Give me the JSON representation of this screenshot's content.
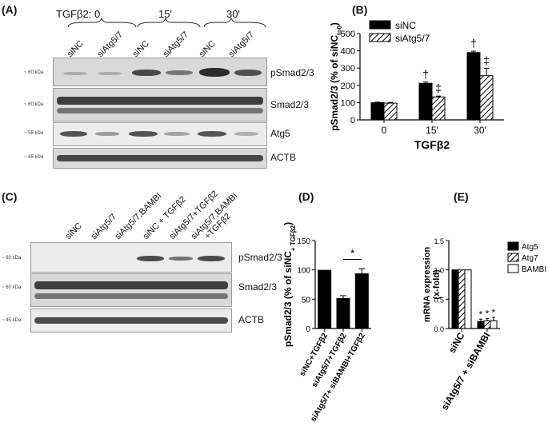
{
  "panels": {
    "A": {
      "letter": "(A)",
      "treatment_label": "TGFβ2:",
      "time_groups": [
        "0",
        "15'",
        "30'"
      ],
      "lanes": [
        "siNC",
        "siAtg5/7",
        "siNC",
        "siAtg5/7",
        "siNC",
        "siAtg5/7"
      ],
      "blots": [
        {
          "name": "pSmad2/3",
          "marker": "~ 60 kDa"
        },
        {
          "name": "Smad2/3",
          "marker": "~ 60 kDa"
        },
        {
          "name": "Atg5",
          "marker": "~ 55 kDa"
        },
        {
          "name": "ACTB",
          "marker": "~ 45 kDa"
        }
      ]
    },
    "B": {
      "letter": "(B)"
    },
    "C": {
      "letter": "(C)",
      "lanes": [
        "siNC",
        "siAtg5/7",
        "siAtg5/7,BAMBI",
        "siNC + TGFβ2",
        "siAtg5/7+TGFβ2",
        "siAtg5/7,BAMBI",
        "+TGFβ2"
      ],
      "blots": [
        {
          "name": "pSmad2/3",
          "marker": "~ 60 kDa"
        },
        {
          "name": "Smad2/3",
          "marker": "~ 60 kDa"
        },
        {
          "name": "ACTB",
          "marker": "~ 45 kDa"
        }
      ]
    },
    "D": {
      "letter": "(D)",
      "significance": "*"
    },
    "E": {
      "letter": "(E)",
      "significance": "*"
    }
  },
  "chart_data": [
    {
      "panel": "B",
      "type": "bar",
      "categories": [
        "0",
        "15'",
        "30'"
      ],
      "series": [
        {
          "name": "siNC",
          "values": [
            100,
            212,
            390
          ],
          "errors": [
            3,
            8,
            8
          ],
          "color": "#000000",
          "pattern": "solid"
        },
        {
          "name": "siAtg5/7",
          "values": [
            97,
            133,
            256
          ],
          "errors": [
            4,
            5,
            42
          ],
          "color": "#ffffff",
          "pattern": "hatch"
        }
      ],
      "markers": [
        {
          "category": "15'",
          "series": "siNC",
          "symbol": "†"
        },
        {
          "category": "15'",
          "series": "siAtg5/7",
          "symbol": "‡"
        },
        {
          "category": "30'",
          "series": "siNC",
          "symbol": "†"
        },
        {
          "category": "30'",
          "series": "siAtg5/7",
          "symbol": "‡"
        }
      ],
      "xlabel": "TGFβ2",
      "ylabel": "pSmad2/3 (% of siNC",
      "ylabel_sub": "t=0",
      "ylabel_end": ")",
      "ylim": [
        0,
        500
      ],
      "yticks": [
        0,
        100,
        200,
        300,
        400,
        500
      ],
      "legend_position": "top-left"
    },
    {
      "panel": "D",
      "type": "bar",
      "categories": [
        "siNC+TGFβ2",
        "siAtg5/7+TGFβ2",
        "siAtg5/7+ siBAMBI+TGFβ2"
      ],
      "values": [
        100,
        52,
        94
      ],
      "errors": [
        0,
        4,
        8
      ],
      "color": "#000000",
      "ylabel": "pSmad2/3 (% of siNC",
      "ylabel_sub": "+ TGFβ2",
      "ylabel_end": ")",
      "ylim": [
        0,
        150
      ],
      "yticks": [
        0,
        50,
        100,
        150
      ]
    },
    {
      "panel": "E",
      "type": "bar",
      "categories": [
        "siNC",
        "siAtg5/7 + siBAMBI"
      ],
      "series": [
        {
          "name": "Atg5",
          "values": [
            1.0,
            0.12
          ],
          "errors": [
            0,
            0.04
          ],
          "color": "#000000",
          "pattern": "solid"
        },
        {
          "name": "Atg7",
          "values": [
            1.0,
            0.13
          ],
          "errors": [
            0,
            0.04
          ],
          "color": "#ffffff",
          "pattern": "hatch"
        },
        {
          "name": "BAMBI",
          "values": [
            1.0,
            0.13
          ],
          "errors": [
            0,
            0.06
          ],
          "color": "#ffffff",
          "pattern": "open"
        }
      ],
      "ylabel": "mRNA expression",
      "ylabel2": "(x-fold)",
      "ylim": [
        0,
        1.5
      ],
      "yticks": [
        0.0,
        0.5,
        1.0,
        1.5
      ],
      "legend_position": "top-right"
    }
  ]
}
